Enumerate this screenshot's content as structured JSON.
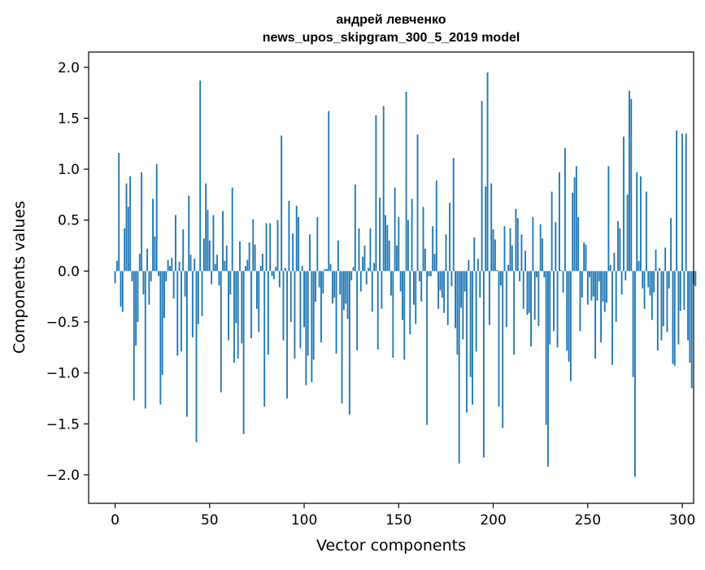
{
  "chart_data": {
    "type": "bar",
    "title": "андрей левченко",
    "subtitle": "news_upos_skipgram_300_5_2019 model",
    "xlabel": "Vector components",
    "ylabel": "Components values",
    "xlim": [
      -14,
      306
    ],
    "ylim": [
      -2.28,
      2.15
    ],
    "xticks": [
      0,
      50,
      100,
      150,
      200,
      250,
      300
    ],
    "xtick_labels": [
      "0",
      "50",
      "100",
      "150",
      "200",
      "250",
      "300"
    ],
    "yticks": [
      2.0,
      1.5,
      1.0,
      0.5,
      0.0,
      -0.5,
      -1.0,
      -1.5,
      -2.0
    ],
    "ytick_labels": [
      "2.0",
      "1.5",
      "1.0",
      "0.5",
      "0.0",
      "−0.5",
      "−1.0",
      "−1.5",
      "−2.0"
    ],
    "bar_color": "#1f77b4",
    "grid": false,
    "values": [
      -0.12,
      0.1,
      1.16,
      -0.35,
      -0.4,
      0.42,
      0.86,
      0.63,
      0.93,
      -0.1,
      -1.27,
      -0.73,
      -0.5,
      0.17,
      0.97,
      -0.23,
      -1.35,
      0.22,
      -0.33,
      -0.1,
      0.71,
      0.34,
      1.05,
      -0.05,
      -1.31,
      -1.02,
      -0.46,
      -0.1,
      0.11,
      0.05,
      0.13,
      -0.27,
      0.55,
      -0.83,
      0.09,
      -0.79,
      0.41,
      -0.25,
      -1.43,
      0.74,
      0.16,
      -0.65,
      0.12,
      -1.68,
      -0.52,
      1.87,
      -0.44,
      0.32,
      0.86,
      0.6,
      0.3,
      -0.13,
      0.55,
      0.07,
      0.16,
      -0.14,
      -1.19,
      0.59,
      0.1,
      0.25,
      -0.68,
      -0.23,
      0.82,
      -0.9,
      -0.51,
      -0.86,
      0.29,
      -0.71,
      -1.6,
      0.05,
      0.11,
      0.28,
      -0.66,
      0.51,
      0.26,
      -0.37,
      -0.6,
      0.05,
      0.17,
      -1.33,
      0.47,
      -0.82,
      0.47,
      -0.05,
      -0.08,
      0.04,
      0.5,
      -0.16,
      1.33,
      -0.68,
      0.03,
      -1.25,
      0.69,
      -0.5,
      0.37,
      -0.86,
      0.64,
      0.53,
      -0.76,
      0.05,
      -0.55,
      -1.12,
      -0.83,
      0.36,
      -1.09,
      -0.87,
      -0.3,
      0.53,
      -0.16,
      -0.7,
      -0.22,
      0.02,
      0.02,
      1.57,
      0.07,
      -0.32,
      -0.26,
      -0.81,
      0.3,
      -0.23,
      -1.3,
      -0.38,
      -0.32,
      -0.47,
      -1.41,
      -0.09,
      0.04,
      0.85,
      -0.78,
      0.42,
      -0.2,
      0.14,
      0.25,
      -0.13,
      0.03,
      0.42,
      -0.4,
      0.08,
      1.53,
      -0.77,
      0.72,
      -0.37,
      1.62,
      0.55,
      0.45,
      0.3,
      -0.24,
      -0.85,
      0.82,
      0.25,
      0.53,
      -0.2,
      -0.48,
      -0.87,
      1.76,
      0.5,
      -0.62,
      0.71,
      -0.33,
      -0.52,
      1.34,
      -0.1,
      -0.3,
      0.63,
      0.22,
      -1.51,
      -0.05,
      -0.05,
      0.44,
      0.17,
      0.89,
      -0.37,
      -0.19,
      -0.26,
      -0.41,
      0.36,
      -0.53,
      0.67,
      -0.15,
      1.11,
      -0.56,
      -0.82,
      -1.89,
      -0.36,
      -0.67,
      -0.2,
      -1.39,
      0.11,
      -1.04,
      -1.31,
      0.33,
      -0.79,
      0.12,
      -0.26,
      1.67,
      -1.83,
      0.83,
      1.95,
      -0.53,
      0.86,
      0.41,
      0.31,
      0.01,
      -1.33,
      -0.14,
      -1.54,
      0.44,
      -0.55,
      0.06,
      0.42,
      0.25,
      -0.82,
      0.61,
      0.52,
      -0.1,
      0.36,
      -0.37,
      0.2,
      -0.43,
      -0.41,
      -0.74,
      0.53,
      -0.48,
      -0.06,
      -0.54,
      0.46,
      0.32,
      -0.06,
      -1.51,
      -1.92,
      -0.72,
      0.78,
      -0.59,
      0.48,
      -0.75,
      0.97,
      0.01,
      -0.21,
      1.21,
      -0.78,
      -0.89,
      -1.08,
      0.77,
      0.92,
      1.03,
      0.53,
      -0.59,
      -0.26,
      0.28,
      0.26,
      -0.33,
      -0.06,
      -0.29,
      -0.25,
      -0.86,
      -0.29,
      -0.1,
      -0.7,
      -0.3,
      -0.4,
      -0.31,
      1.03,
      0.06,
      -0.92,
      0.18,
      -0.5,
      0.49,
      0.42,
      -0.23,
      1.32,
      -0.09,
      0.75,
      1.77,
      1.69,
      -1.04,
      -2.02,
      0.97,
      0.1,
      0.93,
      -0.17,
      -0.37,
      0.78,
      -0.16,
      -0.24,
      -0.48,
      -0.21,
      0.21,
      -0.78,
      0.03,
      -0.68,
      -0.54,
      0.23,
      -0.6,
      -0.17,
      0.52,
      -0.91,
      -0.93,
      1.38,
      -0.72,
      -0.39,
      1.35,
      -0.38,
      1.35,
      -0.68,
      -0.9,
      -1.15,
      -0.13,
      -0.15
    ]
  }
}
